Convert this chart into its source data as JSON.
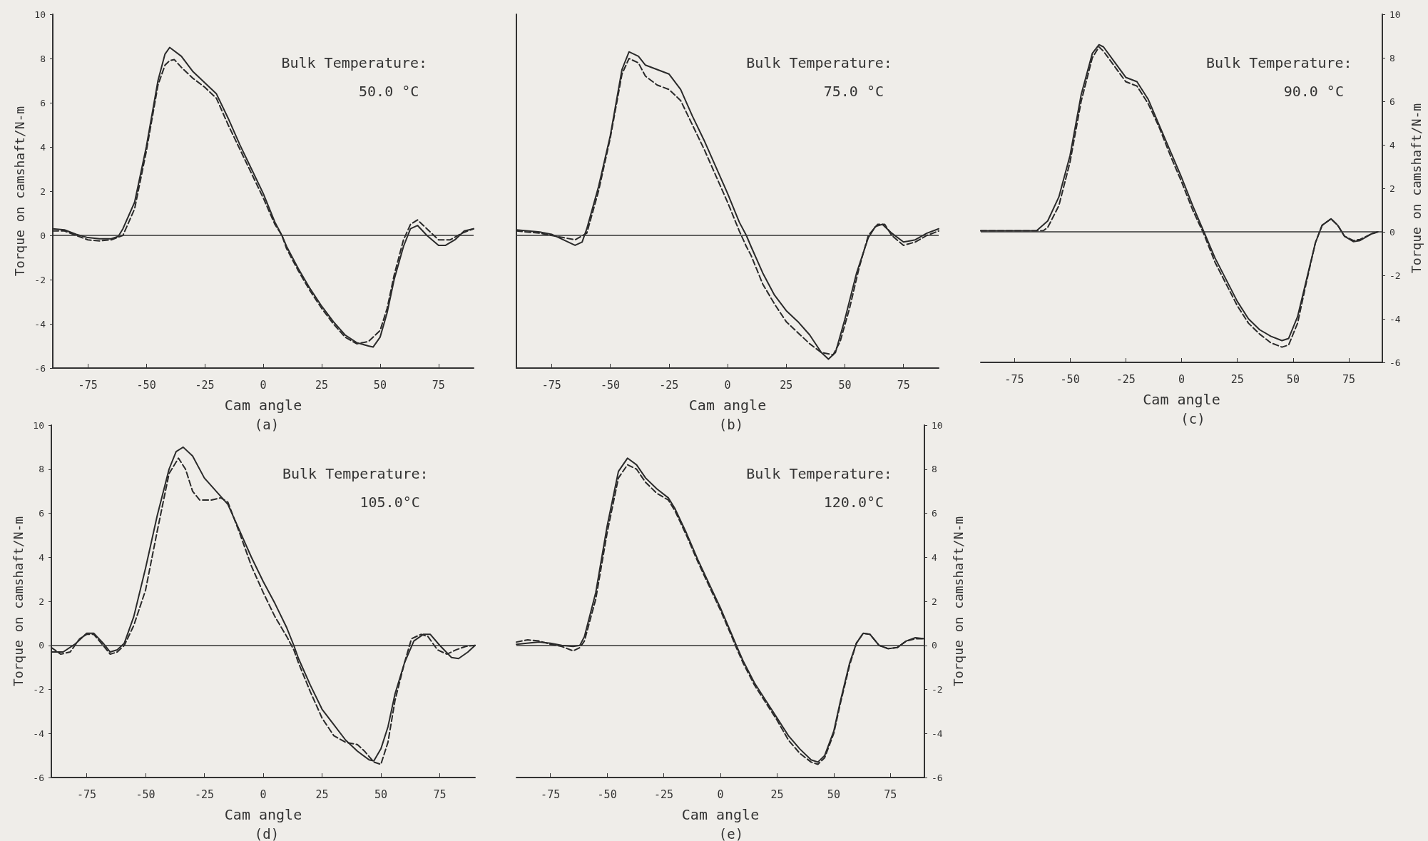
{
  "chart_data": [
    {
      "type": "line",
      "title": "(a)",
      "xlabel": "Cam angle",
      "ylabel": "Torque on camshaft/N-m",
      "annotations": [
        "Bulk Temperature:",
        "50.0 °C"
      ],
      "xlim": [
        -90,
        90
      ],
      "xticks": [
        -75,
        -50,
        -25,
        0,
        25,
        50,
        75
      ],
      "ylim": [
        -6,
        10
      ],
      "yticks": [
        -6,
        -4,
        -2,
        0,
        2,
        4,
        6,
        8,
        10
      ],
      "grid": false,
      "ref_lines": [
        {
          "axis": "y",
          "value": 0,
          "label": null,
          "color": "#333333"
        }
      ],
      "series": [
        {
          "color": "#2a2a2a",
          "line_style": "solid",
          "x": [
            -90,
            -85,
            -80,
            -75,
            -70,
            -65,
            -62,
            -60,
            -55,
            -50,
            -45,
            -42,
            -40,
            -35,
            -30,
            -25,
            -20,
            -15,
            -10,
            -5,
            0,
            5,
            8,
            10,
            15,
            20,
            25,
            30,
            35,
            40,
            45,
            47,
            50,
            53,
            56,
            60,
            63,
            66,
            70,
            75,
            78,
            82,
            86,
            90
          ],
          "values": [
            0.3,
            0.25,
            0.05,
            -0.1,
            -0.15,
            -0.15,
            -0.05,
            0.3,
            1.5,
            4,
            7,
            8.2,
            8.5,
            8.1,
            7.4,
            6.9,
            6.4,
            5.3,
            4.1,
            3,
            1.9,
            0.6,
            0,
            -0.5,
            -1.5,
            -2.4,
            -3.2,
            -3.9,
            -4.5,
            -4.85,
            -5,
            -5.05,
            -4.6,
            -3.5,
            -2,
            -0.5,
            0.3,
            0.45,
            0,
            -0.45,
            -0.45,
            -0.2,
            0.2,
            0.3
          ]
        },
        {
          "color": "#2a2a2a",
          "line_style": "dashed",
          "x": [
            -90,
            -85,
            -80,
            -75,
            -70,
            -65,
            -60,
            -55,
            -50,
            -45,
            -42,
            -40,
            -38,
            -35,
            -30,
            -25,
            -20,
            -15,
            -10,
            -5,
            0,
            5,
            8,
            10,
            15,
            20,
            25,
            30,
            35,
            40,
            45,
            50,
            53,
            56,
            60,
            63,
            66,
            70,
            75,
            80,
            85,
            90
          ],
          "values": [
            0.2,
            0.2,
            0,
            -0.2,
            -0.25,
            -0.2,
            0,
            1.2,
            3.8,
            6.8,
            7.7,
            7.9,
            7.95,
            7.6,
            7.1,
            6.7,
            6.2,
            5,
            3.9,
            2.8,
            1.7,
            0.5,
            0,
            -0.6,
            -1.6,
            -2.5,
            -3.3,
            -4,
            -4.6,
            -4.9,
            -4.8,
            -4.3,
            -3.3,
            -1.8,
            -0.2,
            0.5,
            0.7,
            0.3,
            -0.2,
            -0.2,
            0.1,
            0.3
          ]
        }
      ]
    },
    {
      "type": "line",
      "title": "(b)",
      "xlabel": "Cam angle",
      "annotations": [
        "Bulk Temperature:",
        "75.0 °C"
      ],
      "xlim": [
        -90,
        90
      ],
      "xticks": [
        -75,
        -50,
        -25,
        0,
        25,
        50,
        75
      ],
      "ylim": [
        -6,
        10
      ],
      "yticks": [
        -6,
        -4,
        -2,
        0,
        2,
        4,
        6,
        8,
        10
      ],
      "tick_labels": "x",
      "grid": false,
      "ref_lines": [
        {
          "axis": "y",
          "value": 0,
          "label": null,
          "color": "#333333"
        }
      ],
      "series": [
        {
          "color": "#2a2a2a",
          "line_style": "solid",
          "x": [
            -90,
            -80,
            -75,
            -70,
            -65,
            -62,
            -60,
            -55,
            -50,
            -45,
            -42,
            -38,
            -35,
            -30,
            -25,
            -20,
            -15,
            -10,
            -5,
            0,
            5,
            8,
            10,
            15,
            20,
            25,
            30,
            35,
            40,
            43,
            46,
            50,
            55,
            60,
            63,
            66,
            70,
            75,
            80,
            85,
            90
          ],
          "values": [
            0.25,
            0.15,
            0.05,
            -0.2,
            -0.45,
            -0.3,
            0.3,
            2.2,
            4.5,
            7.5,
            8.3,
            8.1,
            7.7,
            7.5,
            7.3,
            6.6,
            5.4,
            4.3,
            3.1,
            1.9,
            0.6,
            0,
            -0.5,
            -1.7,
            -2.7,
            -3.4,
            -3.9,
            -4.5,
            -5.3,
            -5.6,
            -5.3,
            -3.8,
            -1.7,
            -0.1,
            0.4,
            0.5,
            0.1,
            -0.3,
            -0.2,
            0.1,
            0.3
          ]
        },
        {
          "color": "#2a2a2a",
          "line_style": "dashed",
          "x": [
            -90,
            -80,
            -70,
            -65,
            -60,
            -55,
            -50,
            -45,
            -42,
            -38,
            -35,
            -30,
            -25,
            -20,
            -15,
            -10,
            -5,
            0,
            5,
            8,
            10,
            15,
            20,
            25,
            30,
            35,
            40,
            45,
            48,
            52,
            56,
            60,
            64,
            67,
            70,
            75,
            80,
            85,
            90
          ],
          "values": [
            0.2,
            0.1,
            -0.1,
            -0.2,
            0.1,
            2,
            4.4,
            7.3,
            8,
            7.8,
            7.2,
            6.8,
            6.6,
            6.1,
            5,
            3.9,
            2.7,
            1.5,
            0.2,
            -0.5,
            -0.9,
            -2.2,
            -3.1,
            -3.9,
            -4.4,
            -4.9,
            -5.3,
            -5.4,
            -4.8,
            -3.3,
            -1.5,
            0,
            0.5,
            0.5,
            0,
            -0.45,
            -0.3,
            0,
            0.2
          ]
        }
      ]
    },
    {
      "type": "line",
      "title": "(c)",
      "xlabel": "Cam angle",
      "ylabel": "Torque on camshaft/N-m",
      "annotations": [
        "Bulk Temperature:",
        "90.0 °C"
      ],
      "xlim": [
        -90,
        90
      ],
      "xticks": [
        -75,
        -50,
        -25,
        0,
        25,
        50,
        75
      ],
      "ylim": [
        -6,
        10
      ],
      "yticks": [
        -6,
        -4,
        -2,
        0,
        2,
        4,
        6,
        8,
        10
      ],
      "grid": false,
      "ref_lines": [
        {
          "axis": "y",
          "value": 0,
          "label": null,
          "color": "#333333"
        }
      ],
      "series": [
        {
          "color": "#2a2a2a",
          "line_style": "solid",
          "x": [
            -90,
            -70,
            -65,
            -60,
            -55,
            -50,
            -45,
            -40,
            -37,
            -35,
            -30,
            -25,
            -20,
            -15,
            -10,
            -5,
            0,
            5,
            10,
            15,
            20,
            25,
            30,
            35,
            40,
            45,
            48,
            52,
            56,
            60,
            63,
            67,
            70,
            73,
            77,
            80,
            85,
            88
          ],
          "values": [
            0.05,
            0.05,
            0.05,
            0.5,
            1.6,
            3.5,
            6.3,
            8.2,
            8.6,
            8.5,
            7.8,
            7.1,
            6.9,
            6.1,
            4.9,
            3.7,
            2.5,
            1.2,
            0,
            -1.2,
            -2.2,
            -3.2,
            -4,
            -4.5,
            -4.8,
            -5,
            -4.9,
            -3.9,
            -2.2,
            -0.5,
            0.3,
            0.6,
            0.3,
            -0.2,
            -0.45,
            -0.4,
            -0.1,
            0
          ]
        },
        {
          "color": "#2a2a2a",
          "line_style": "dashed",
          "x": [
            -90,
            -65,
            -62,
            -60,
            -55,
            -50,
            -45,
            -40,
            -37,
            -35,
            -30,
            -25,
            -20,
            -15,
            -10,
            -5,
            0,
            5,
            10,
            15,
            20,
            25,
            30,
            35,
            40,
            45,
            48,
            52,
            56,
            60,
            63,
            67,
            70,
            73,
            77,
            80,
            85,
            88
          ],
          "values": [
            0.05,
            0.05,
            0.05,
            0.2,
            1.2,
            3.2,
            6,
            8,
            8.5,
            8.3,
            7.6,
            6.9,
            6.7,
            5.9,
            4.8,
            3.5,
            2.3,
            1,
            -0.1,
            -1.4,
            -2.4,
            -3.4,
            -4.2,
            -4.7,
            -5.1,
            -5.3,
            -5.2,
            -4.2,
            -2.3,
            -0.5,
            0.3,
            0.6,
            0.3,
            -0.2,
            -0.4,
            -0.35,
            -0.1,
            0
          ]
        }
      ]
    },
    {
      "type": "line",
      "title": "(d)",
      "xlabel": "Cam angle",
      "ylabel": "Torque on camshaft/N-m",
      "annotations": [
        "Bulk Temperature:",
        "105.0°C"
      ],
      "xlim": [
        -90,
        90
      ],
      "xticks": [
        -75,
        -50,
        -25,
        0,
        25,
        50,
        75
      ],
      "ylim": [
        -6,
        10
      ],
      "yticks": [
        -6,
        -4,
        -2,
        0,
        2,
        4,
        6,
        8,
        10
      ],
      "grid": false,
      "ref_lines": [
        {
          "axis": "y",
          "value": 0,
          "label": null,
          "color": "#333333"
        }
      ],
      "series": [
        {
          "color": "#2a2a2a",
          "line_style": "solid",
          "x": [
            -90,
            -85,
            -80,
            -75,
            -72,
            -68,
            -65,
            -62,
            -59,
            -55,
            -50,
            -45,
            -40,
            -37,
            -34,
            -30,
            -25,
            -20,
            -15,
            -10,
            -5,
            0,
            5,
            10,
            13,
            15,
            20,
            25,
            30,
            35,
            40,
            45,
            47,
            50,
            53,
            56,
            60,
            64,
            68,
            71,
            75,
            80,
            83,
            87,
            90
          ],
          "values": [
            -0.3,
            -0.3,
            0.05,
            0.55,
            0.55,
            0.1,
            -0.3,
            -0.2,
            0.1,
            1.3,
            3.5,
            5.9,
            8,
            8.8,
            9,
            8.6,
            7.6,
            7,
            6.4,
            5.2,
            4,
            2.9,
            1.9,
            0.8,
            0,
            -0.6,
            -1.8,
            -2.9,
            -3.6,
            -4.3,
            -4.8,
            -5.2,
            -5.25,
            -4.7,
            -3.7,
            -2.2,
            -0.8,
            0.2,
            0.5,
            0.5,
            0,
            -0.55,
            -0.6,
            -0.3,
            0
          ]
        },
        {
          "color": "#2a2a2a",
          "line_style": "dashed",
          "x": [
            -90,
            -86,
            -82,
            -78,
            -75,
            -72,
            -68,
            -65,
            -62,
            -59,
            -55,
            -50,
            -45,
            -40,
            -36,
            -33,
            -30,
            -27,
            -22,
            -18,
            -15,
            -10,
            -5,
            0,
            5,
            10,
            13,
            15,
            20,
            25,
            30,
            35,
            40,
            43,
            47,
            50,
            53,
            56,
            60,
            63,
            67,
            70,
            74,
            78,
            82,
            86,
            90
          ],
          "values": [
            -0.1,
            -0.4,
            -0.3,
            0.3,
            0.5,
            0.5,
            0,
            -0.4,
            -0.3,
            0,
            0.9,
            2.5,
            5.2,
            7.8,
            8.5,
            8,
            7,
            6.6,
            6.6,
            6.7,
            6.5,
            5.1,
            3.6,
            2.4,
            1.3,
            0.4,
            -0.2,
            -0.8,
            -2.1,
            -3.3,
            -4.1,
            -4.4,
            -4.5,
            -4.8,
            -5.3,
            -5.4,
            -4.4,
            -2.5,
            -0.8,
            0.3,
            0.5,
            0.4,
            -0.2,
            -0.4,
            -0.2,
            -0.05,
            0
          ]
        }
      ]
    },
    {
      "type": "line",
      "title": "(e)",
      "xlabel": "Cam angle",
      "ylabel": "Torque on camshaft/N-m",
      "annotations": [
        "Bulk Temperature:",
        "120.0°C"
      ],
      "xlim": [
        -90,
        90
      ],
      "xticks": [
        -75,
        -50,
        -25,
        0,
        25,
        50,
        75
      ],
      "ylim": [
        -6,
        10
      ],
      "yticks": [
        -6,
        -4,
        -2,
        0,
        2,
        4,
        6,
        8,
        10
      ],
      "grid": false,
      "ref_lines": [
        {
          "axis": "y",
          "value": 0,
          "label": null,
          "color": "#333333"
        }
      ],
      "series": [
        {
          "color": "#2a2a2a",
          "line_style": "solid",
          "x": [
            -90,
            -80,
            -75,
            -70,
            -65,
            -62,
            -60,
            -55,
            -50,
            -45,
            -41,
            -37,
            -33,
            -28,
            -23,
            -20,
            -15,
            -10,
            -5,
            0,
            5,
            7,
            10,
            15,
            20,
            25,
            30,
            35,
            40,
            43,
            46,
            50,
            53,
            57,
            60,
            63,
            66,
            70,
            74,
            78,
            82,
            86,
            90
          ],
          "values": [
            0.05,
            0.15,
            0.1,
            0,
            -0.05,
            0,
            0.4,
            2.4,
            5.4,
            7.9,
            8.5,
            8.2,
            7.6,
            7.1,
            6.7,
            6.2,
            5.1,
            3.9,
            2.8,
            1.7,
            0.5,
            0,
            -0.7,
            -1.7,
            -2.5,
            -3.3,
            -4.1,
            -4.7,
            -5.2,
            -5.3,
            -5,
            -3.9,
            -2.5,
            -0.8,
            0.1,
            0.55,
            0.5,
            0,
            -0.15,
            -0.1,
            0.2,
            0.35,
            0.3
          ]
        },
        {
          "color": "#2a2a2a",
          "line_style": "dashed",
          "x": [
            -90,
            -85,
            -80,
            -75,
            -70,
            -65,
            -62,
            -60,
            -55,
            -50,
            -45,
            -41,
            -37,
            -33,
            -28,
            -23,
            -20,
            -15,
            -10,
            -5,
            0,
            5,
            7,
            10,
            15,
            20,
            25,
            30,
            35,
            40,
            43,
            46,
            50,
            53,
            57,
            60,
            63,
            66,
            70,
            74,
            78,
            82,
            86,
            90
          ],
          "values": [
            0.15,
            0.25,
            0.2,
            0.05,
            -0.05,
            -0.25,
            -0.1,
            0.2,
            2.1,
            5.1,
            7.6,
            8.2,
            8,
            7.4,
            6.9,
            6.6,
            6.1,
            5,
            3.8,
            2.7,
            1.6,
            0.4,
            -0.1,
            -0.8,
            -1.8,
            -2.6,
            -3.4,
            -4.3,
            -4.9,
            -5.3,
            -5.4,
            -5.1,
            -4,
            -2.6,
            -0.9,
            0.1,
            0.55,
            0.5,
            0,
            -0.15,
            -0.1,
            0.2,
            0.3,
            0.3
          ]
        }
      ]
    }
  ]
}
